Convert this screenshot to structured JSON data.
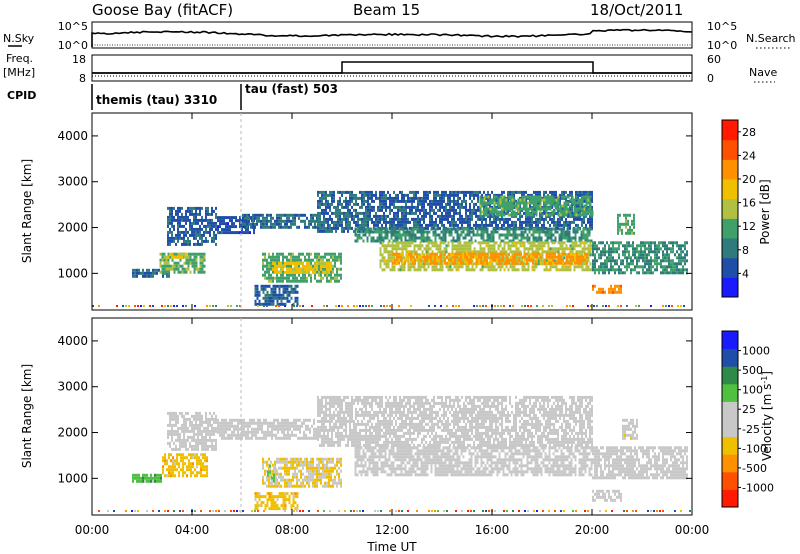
{
  "header": {
    "station": "Goose Bay (fitACF)",
    "beam": "Beam 15",
    "date": "18/Oct/2011"
  },
  "noise_panel": {
    "left_label": "N.Sky",
    "right_label": "N.Search",
    "left_ticks": [
      "10^5",
      "10^0"
    ],
    "right_ticks": [
      "10^5",
      "10^0"
    ]
  },
  "freq_panel": {
    "left_label_line1": "Freq.",
    "left_label_line2": "[MHz]",
    "right_label": "Nave",
    "left_ticks": [
      "18",
      "8"
    ],
    "right_ticks": [
      "60",
      "0"
    ]
  },
  "cpid_panel": {
    "label": "CPID",
    "segments": [
      {
        "text": "themis (tau) 3310",
        "start_hour": 0.0,
        "end_hour": 6.0
      },
      {
        "text": "tau (fast) 503",
        "start_hour": 6.0,
        "end_hour": 24.0
      }
    ]
  },
  "colors": {
    "power_scale": [
      "#1a1aff",
      "#1f4ea8",
      "#2f7a7a",
      "#3fa06a",
      "#b0c040",
      "#f0c000",
      "#ff9000",
      "#ff5000",
      "#ff1a00"
    ],
    "velocity_scale": [
      "#1a1aff",
      "#1f4ea8",
      "#2f8a4a",
      "#50c040",
      "#c8c8c8",
      "#c8c8c8",
      "#f0c000",
      "#ff9000",
      "#ff5000",
      "#ff1a00"
    ]
  },
  "chart_data": [
    {
      "type": "heatmap",
      "name": "power",
      "title": "",
      "xlabel": "",
      "ylabel": "Slant Range [km]",
      "xlim": [
        0,
        24
      ],
      "ylim": [
        200,
        4500
      ],
      "x_ticks": [
        "00:00",
        "04:00",
        "08:00",
        "12:00",
        "16:00",
        "20:00",
        "00:00"
      ],
      "y_ticks": [
        1000,
        2000,
        3000,
        4000
      ],
      "colorbar_label": "Power [dB]",
      "colorbar_ticks": [
        4,
        8,
        12,
        16,
        20,
        24,
        28
      ],
      "colorbar_range": [
        0,
        30
      ],
      "regions": [
        {
          "t0": 1.6,
          "t1": 3.1,
          "r0": 950,
          "r1": 1100,
          "value": 7
        },
        {
          "t0": 2.7,
          "t1": 4.5,
          "r0": 1050,
          "r1": 1450,
          "value": 13
        },
        {
          "t0": 3.0,
          "t1": 3.8,
          "r0": 1350,
          "r1": 1450,
          "value": 18
        },
        {
          "t0": 3.0,
          "t1": 5.0,
          "r0": 1600,
          "r1": 2450,
          "value": 6
        },
        {
          "t0": 5.0,
          "t1": 6.5,
          "r0": 1900,
          "r1": 2250,
          "value": 5
        },
        {
          "t0": 6.0,
          "t1": 9.0,
          "r0": 2000,
          "r1": 2300,
          "value": 7
        },
        {
          "t0": 6.8,
          "t1": 10.0,
          "r0": 850,
          "r1": 1450,
          "value": 12
        },
        {
          "t0": 7.2,
          "t1": 9.6,
          "r0": 1000,
          "r1": 1250,
          "value": 18
        },
        {
          "t0": 6.5,
          "t1": 8.2,
          "r0": 350,
          "r1": 750,
          "value": 6
        },
        {
          "t0": 9.0,
          "t1": 11.0,
          "r0": 1900,
          "r1": 2800,
          "value": 7
        },
        {
          "t0": 11.0,
          "t1": 20.0,
          "r0": 2000,
          "r1": 2800,
          "value": 6
        },
        {
          "t0": 10.5,
          "t1": 20.0,
          "r0": 1700,
          "r1": 2000,
          "value": 10
        },
        {
          "t0": 11.5,
          "t1": 20.0,
          "r0": 1100,
          "r1": 1700,
          "value": 15
        },
        {
          "t0": 12.0,
          "t1": 19.8,
          "r0": 1250,
          "r1": 1450,
          "value": 21
        },
        {
          "t0": 15.5,
          "t1": 20.0,
          "r0": 2300,
          "r1": 2700,
          "value": 12
        },
        {
          "t0": 20.0,
          "t1": 21.2,
          "r0": 600,
          "r1": 750,
          "value": 22
        },
        {
          "t0": 20.0,
          "t1": 23.8,
          "r0": 1000,
          "r1": 1700,
          "value": 10
        },
        {
          "t0": 21.0,
          "t1": 21.7,
          "r0": 1900,
          "r1": 2300,
          "value": 12
        }
      ]
    },
    {
      "type": "heatmap",
      "name": "velocity",
      "title": "",
      "xlabel": "Time UT",
      "ylabel": "Slant Range [km]",
      "xlim": [
        0,
        24
      ],
      "ylim": [
        200,
        4500
      ],
      "x_ticks": [
        "00:00",
        "04:00",
        "08:00",
        "12:00",
        "16:00",
        "20:00",
        "00:00"
      ],
      "y_ticks": [
        1000,
        2000,
        3000,
        4000
      ],
      "colorbar_label": "Velocity [m s-1]",
      "colorbar_ticks": [
        1000,
        500,
        100,
        25,
        -25,
        -100,
        -500,
        -1000
      ],
      "colorbar_range": [
        -1000,
        1000
      ],
      "regions": [
        {
          "t0": 1.6,
          "t1": 2.8,
          "r0": 950,
          "r1": 1100,
          "value": 300
        },
        {
          "t0": 2.8,
          "t1": 4.6,
          "r0": 1050,
          "r1": 1550,
          "value": -300
        },
        {
          "t0": 3.0,
          "t1": 5.0,
          "r0": 1600,
          "r1": 2450,
          "value": 0
        },
        {
          "t0": 5.0,
          "t1": 9.0,
          "r0": 1900,
          "r1": 2300,
          "value": 0
        },
        {
          "t0": 6.8,
          "t1": 10.0,
          "r0": 850,
          "r1": 1450,
          "value": -200
        },
        {
          "t0": 7.0,
          "t1": 7.4,
          "r0": 900,
          "r1": 1300,
          "value": 200
        },
        {
          "t0": 6.5,
          "t1": 8.2,
          "r0": 350,
          "r1": 700,
          "value": -300
        },
        {
          "t0": 9.0,
          "t1": 20.0,
          "r0": 1700,
          "r1": 2800,
          "value": 0
        },
        {
          "t0": 10.5,
          "t1": 20.0,
          "r0": 1100,
          "r1": 1700,
          "value": 0
        },
        {
          "t0": 20.0,
          "t1": 23.8,
          "r0": 1000,
          "r1": 1700,
          "value": 0
        },
        {
          "t0": 20.0,
          "t1": 21.2,
          "r0": 550,
          "r1": 750,
          "value": 0
        },
        {
          "t0": 21.2,
          "t1": 21.8,
          "r0": 1900,
          "r1": 2300,
          "value": -150
        }
      ]
    }
  ]
}
